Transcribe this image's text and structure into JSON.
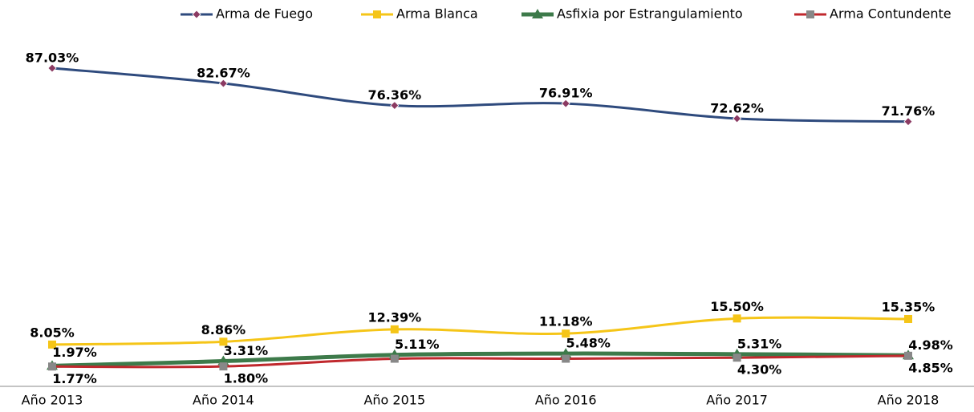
{
  "chart_data": {
    "type": "line",
    "categories": [
      "Año 2013",
      "Año 2014",
      "Año 2015",
      "Año 2016",
      "Año 2017",
      "Año 2018"
    ],
    "series": [
      {
        "name": "Arma de Fuego",
        "color": "#2e4a7d",
        "marker_color": "#8b3a62",
        "marker": "diamond",
        "values": [
          87.03,
          82.67,
          76.36,
          76.91,
          72.62,
          71.76
        ],
        "value_labels": [
          "87.03%",
          "82.67%",
          "76.36%",
          "76.91%",
          "72.62%",
          "71.76%"
        ]
      },
      {
        "name": "Arma Blanca",
        "color": "#f5c518",
        "marker_color": "#f5c518",
        "marker": "square",
        "values": [
          8.05,
          8.86,
          12.39,
          11.18,
          15.5,
          15.35
        ],
        "value_labels": [
          "8.05%",
          "8.86%",
          "12.39%",
          "11.18%",
          "15.50%",
          "15.35%"
        ]
      },
      {
        "name": "Asfixia por Estrangulamiento",
        "color": "#3d7a4a",
        "marker_color": "#3d7a4a",
        "marker": "triangle",
        "values": [
          1.97,
          3.31,
          5.11,
          5.48,
          5.31,
          4.98
        ],
        "value_labels": [
          "1.97%",
          "3.31%",
          "5.11%",
          "5.48%",
          "5.31%",
          "4.98%"
        ]
      },
      {
        "name": "Arma Contundente",
        "color": "#c0282d",
        "marker_color": "#888888",
        "marker": "square",
        "values": [
          1.77,
          1.8,
          4.0,
          4.0,
          4.3,
          4.85
        ],
        "value_labels": [
          "1.77%",
          "1.80%",
          null,
          null,
          "4.30%",
          "4.85%"
        ]
      }
    ],
    "legend": "top"
  }
}
